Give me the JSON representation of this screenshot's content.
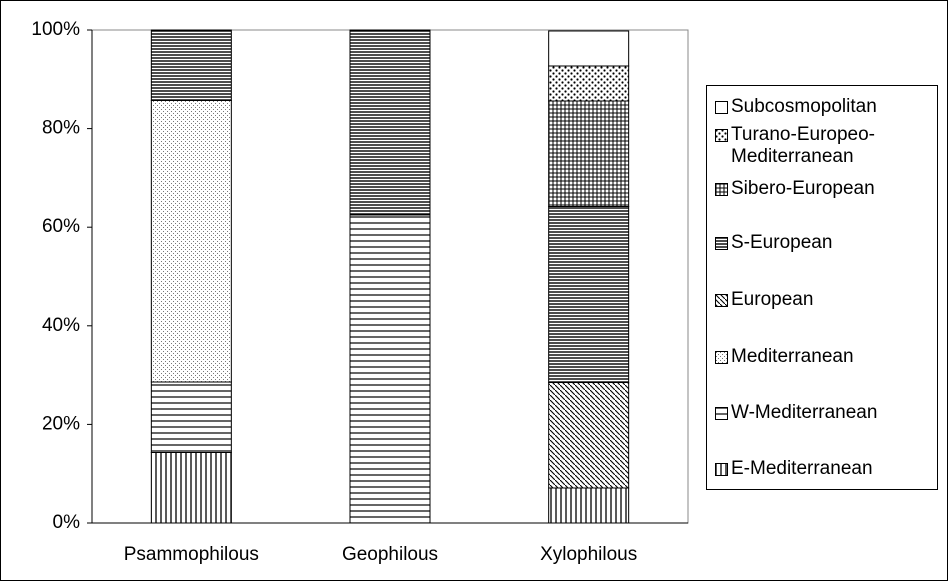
{
  "chart_data": {
    "type": "stacked_bar",
    "categories": [
      "Psammophilous",
      "Geophilous",
      "Xylophilous"
    ],
    "series": [
      {
        "name": "E-Mediterranean",
        "values": [
          14.3,
          0,
          7.1
        ]
      },
      {
        "name": "W-Mediterranean",
        "values": [
          14.3,
          62.5,
          0
        ]
      },
      {
        "name": "Mediterranean",
        "values": [
          57.1,
          0,
          0
        ]
      },
      {
        "name": "European",
        "values": [
          0,
          0,
          21.4
        ]
      },
      {
        "name": "S-European",
        "values": [
          14.3,
          37.5,
          35.7
        ]
      },
      {
        "name": "Sibero-European",
        "values": [
          0,
          0,
          21.4
        ]
      },
      {
        "name": "Turano-Europeo-Mediterranean",
        "values": [
          0,
          0,
          7.1
        ]
      },
      {
        "name": "Subcosmopolitan",
        "values": [
          0,
          0,
          7.1
        ]
      }
    ],
    "ylim": [
      0,
      100
    ],
    "yticks": [
      {
        "value": 0,
        "label": "0%"
      },
      {
        "value": 20,
        "label": "20%"
      },
      {
        "value": 40,
        "label": "40%"
      },
      {
        "value": 60,
        "label": "60%"
      },
      {
        "value": 80,
        "label": "80%"
      },
      {
        "value": 100,
        "label": "100%"
      }
    ],
    "legend": "right"
  }
}
